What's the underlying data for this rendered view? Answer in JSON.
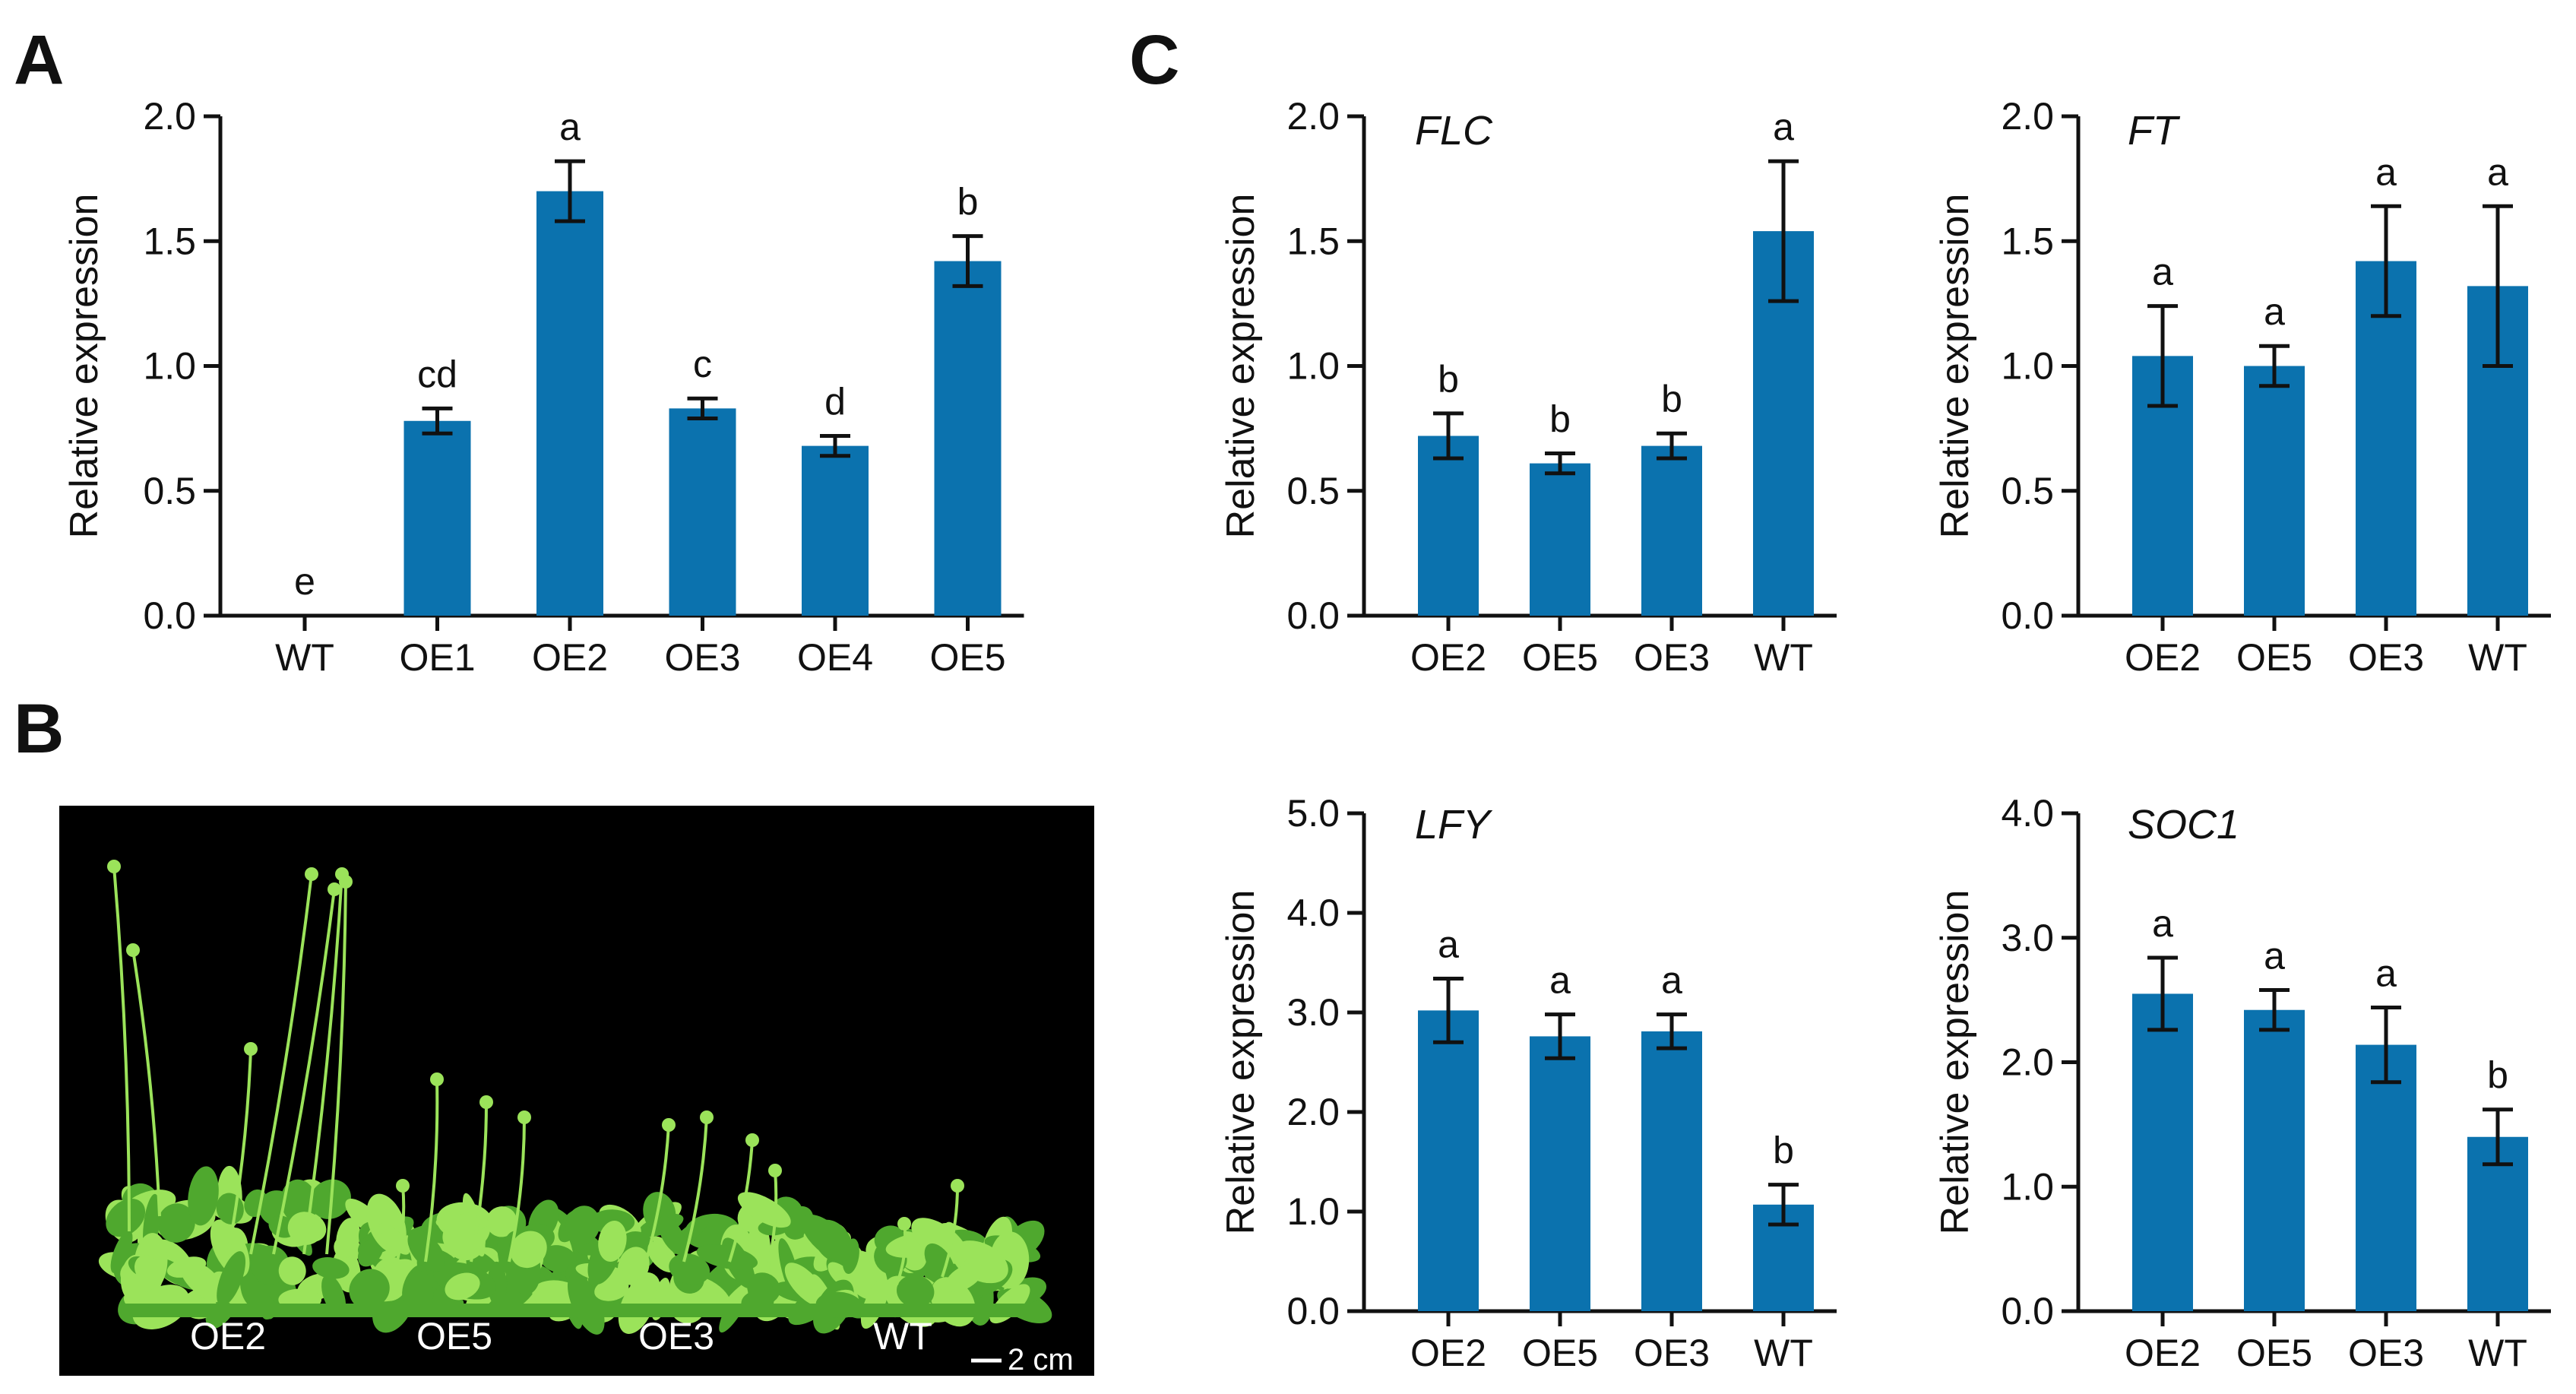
{
  "panels": {
    "a": "A",
    "b": "B",
    "c": "C"
  },
  "colors": {
    "bar": "#0B72AE",
    "axis": "#111111",
    "photo_bg": "#000000",
    "plant_light": "#9BE35A",
    "plant_dark": "#4FA82E"
  },
  "chart_data": [
    {
      "id": "A",
      "type": "bar",
      "title": "",
      "xlabel": "",
      "ylabel": "Relative expression",
      "ylim": [
        0,
        2.0
      ],
      "yticks": [
        "0.0",
        "0.5",
        "1.0",
        "1.5",
        "2.0"
      ],
      "categories": [
        "WT",
        "OE1",
        "OE2",
        "OE3",
        "OE4",
        "OE5"
      ],
      "values": [
        0,
        0.78,
        1.7,
        0.83,
        0.68,
        1.42
      ],
      "errors": [
        0,
        0.05,
        0.12,
        0.04,
        0.04,
        0.1
      ],
      "letters": [
        "e",
        "cd",
        "a",
        "c",
        "d",
        "b"
      ]
    },
    {
      "id": "C-FLC",
      "type": "bar",
      "title": "FLC",
      "xlabel": "",
      "ylabel": "Relative expression",
      "ylim": [
        0,
        2.0
      ],
      "yticks": [
        "0.0",
        "0.5",
        "1.0",
        "1.5",
        "2.0"
      ],
      "categories": [
        "OE2",
        "OE5",
        "OE3",
        "WT"
      ],
      "values": [
        0.72,
        0.61,
        0.68,
        1.54
      ],
      "errors": [
        0.09,
        0.04,
        0.05,
        0.28
      ],
      "letters": [
        "b",
        "b",
        "b",
        "a"
      ]
    },
    {
      "id": "C-FT",
      "type": "bar",
      "title": "FT",
      "xlabel": "",
      "ylabel": "Relative expression",
      "ylim": [
        0,
        2.0
      ],
      "yticks": [
        "0.0",
        "0.5",
        "1.0",
        "1.5",
        "2.0"
      ],
      "categories": [
        "OE2",
        "OE5",
        "OE3",
        "WT"
      ],
      "values": [
        1.04,
        1.0,
        1.42,
        1.32
      ],
      "errors": [
        0.2,
        0.08,
        0.22,
        0.32
      ],
      "letters": [
        "a",
        "a",
        "a",
        "a"
      ]
    },
    {
      "id": "C-LFY",
      "type": "bar",
      "title": "LFY",
      "xlabel": "",
      "ylabel": "Relative expression",
      "ylim": [
        0,
        5.0
      ],
      "yticks": [
        "0.0",
        "1.0",
        "2.0",
        "3.0",
        "4.0",
        "5.0"
      ],
      "categories": [
        "OE2",
        "OE5",
        "OE3",
        "WT"
      ],
      "values": [
        3.02,
        2.76,
        2.81,
        1.07
      ],
      "errors": [
        0.32,
        0.22,
        0.17,
        0.2
      ],
      "letters": [
        "a",
        "a",
        "a",
        "b"
      ]
    },
    {
      "id": "C-SOC1",
      "type": "bar",
      "title": "SOC1",
      "xlabel": "",
      "ylabel": "Relative expression",
      "ylim": [
        0,
        4.0
      ],
      "yticks": [
        "0.0",
        "1.0",
        "2.0",
        "3.0",
        "4.0"
      ],
      "categories": [
        "OE2",
        "OE5",
        "OE3",
        "WT"
      ],
      "values": [
        2.55,
        2.42,
        2.14,
        1.4
      ],
      "errors": [
        0.29,
        0.16,
        0.3,
        0.22
      ],
      "letters": [
        "a",
        "a",
        "a",
        "b"
      ]
    }
  ],
  "photo": {
    "labels": [
      "OE2",
      "OE5",
      "OE3",
      "WT"
    ],
    "scale_bar": "2 cm"
  }
}
